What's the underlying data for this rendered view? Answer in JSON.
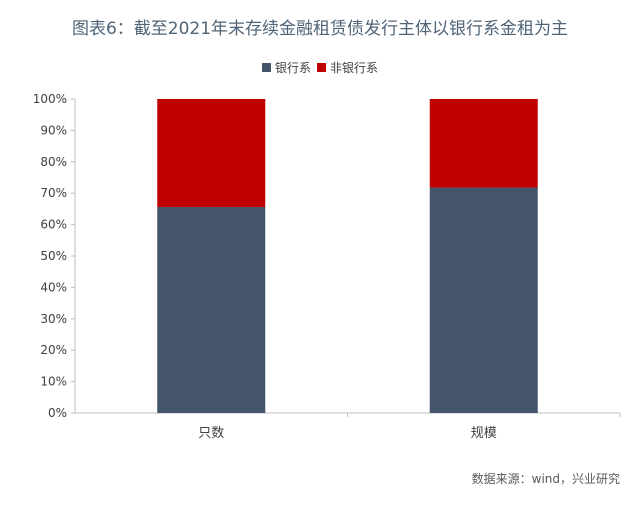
{
  "title": "图表6：截至2021年末存续金融租赁债发行主体以银行系金租为主",
  "source": "数据来源：wind，兴业研究",
  "legend": [
    {
      "label": "银行系",
      "color": "#44546a"
    },
    {
      "label": "非银行系",
      "color": "#c00000"
    }
  ],
  "chart_data": {
    "type": "bar",
    "stacked": true,
    "categories": [
      "只数",
      "规模"
    ],
    "series": [
      {
        "name": "银行系",
        "values": [
          65.6,
          71.8
        ],
        "color": "#44546a"
      },
      {
        "name": "非银行系",
        "values": [
          34.4,
          28.2
        ],
        "color": "#c00000"
      }
    ],
    "yticks": [
      "0%",
      "10%",
      "20%",
      "30%",
      "40%",
      "50%",
      "60%",
      "70%",
      "80%",
      "90%",
      "100%"
    ],
    "ylim": [
      0,
      100
    ],
    "grid": false,
    "legend_position": "top"
  }
}
